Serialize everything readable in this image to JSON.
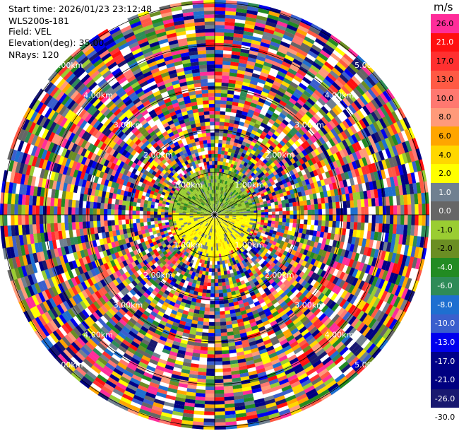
{
  "info": {
    "start_time_label": "Start time:",
    "start_time": "2026/01/23 23:12:48",
    "site": "WLS200s-181",
    "field_label": "Field:",
    "field": "VEL",
    "elevation_label": "Elevation(deg):",
    "elevation": "35.00",
    "nrays_label": "NRays:",
    "nrays": "120"
  },
  "ring_labels": [
    "1.00km",
    "2.00km",
    "3.00km",
    "4.00km",
    "5.00km"
  ],
  "colorbar": {
    "unit": "m/s",
    "bins": [
      {
        "label": "26.0",
        "color": "#ff2d9a"
      },
      {
        "label": "21.0",
        "color": "#ff1010"
      },
      {
        "label": "17.0",
        "color": "#ff3030"
      },
      {
        "label": "13.0",
        "color": "#ff5a44"
      },
      {
        "label": "10.0",
        "color": "#ff7870"
      },
      {
        "label": "8.0",
        "color": "#ff9a7a"
      },
      {
        "label": "6.0",
        "color": "#ffa500"
      },
      {
        "label": "4.0",
        "color": "#ffd700"
      },
      {
        "label": "2.0",
        "color": "#ffff00"
      },
      {
        "label": "1.0",
        "color": "#708090"
      },
      {
        "label": "0.0",
        "color": "#666666"
      },
      {
        "label": "-1.0",
        "color": "#9acd32"
      },
      {
        "label": "-2.0",
        "color": "#6b8e23"
      },
      {
        "label": "-4.0",
        "color": "#228b22"
      },
      {
        "label": "-6.0",
        "color": "#2e8b57"
      },
      {
        "label": "-8.0",
        "color": "#1e6fd0"
      },
      {
        "label": "-10.0",
        "color": "#3a5fcd"
      },
      {
        "label": "-13.0",
        "color": "#0000ee"
      },
      {
        "label": "-17.0",
        "color": "#000088"
      },
      {
        "label": "-21.0",
        "color": "#000080"
      },
      {
        "label": "-26.0",
        "color": "#191970"
      },
      {
        "label": "-30.0",
        "color": "#ffffff"
      }
    ]
  }
}
